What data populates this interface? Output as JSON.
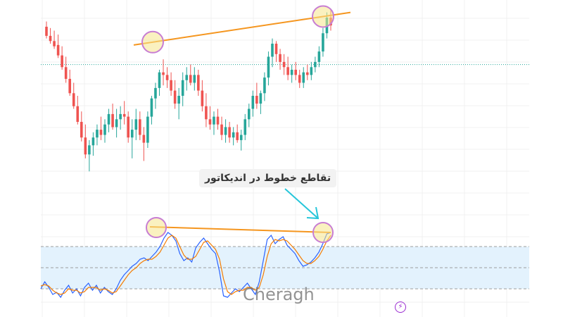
{
  "annotation": {
    "text": "تقاطع خطوط در اندیکاتور"
  },
  "watermark": {
    "text": "Cheragh"
  },
  "icons": {
    "flash": "lightning-bolt-icon"
  },
  "colors": {
    "up_candle": "#26a69a",
    "down_candle": "#ef5350",
    "trendline": "#f5961f",
    "highlight_circle_fill": "#f6e58d",
    "highlight_circle_stroke": "#c77dd3",
    "stoch_k": "#2962ff",
    "stoch_d": "#f57c00",
    "band_fill": "#e3f2fd",
    "arrow": "#26c6da",
    "dotted_level": "#26a69a"
  },
  "chart_data": [
    {
      "type": "candlestick",
      "title": "",
      "xlabel": "",
      "ylabel": "",
      "ylim": [
        0,
        100
      ],
      "grid": true,
      "horizontal_level": 64,
      "candles": [
        [
          93,
          97,
          84,
          86
        ],
        [
          86,
          92,
          80,
          82
        ],
        [
          82,
          90,
          76,
          78
        ],
        [
          79,
          87,
          69,
          71
        ],
        [
          71,
          78,
          60,
          62
        ],
        [
          62,
          70,
          50,
          53
        ],
        [
          53,
          60,
          40,
          42
        ],
        [
          42,
          50,
          30,
          32
        ],
        [
          32,
          40,
          18,
          20
        ],
        [
          20,
          28,
          5,
          8
        ],
        [
          8,
          18,
          -8,
          -5
        ],
        [
          -5,
          6,
          -18,
          2
        ],
        [
          2,
          12,
          -6,
          8
        ],
        [
          8,
          18,
          2,
          14
        ],
        [
          14,
          24,
          6,
          10
        ],
        [
          10,
          22,
          4,
          18
        ],
        [
          18,
          30,
          12,
          26
        ],
        [
          26,
          34,
          14,
          16
        ],
        [
          16,
          30,
          8,
          22
        ],
        [
          22,
          32,
          14,
          26
        ],
        [
          26,
          36,
          18,
          24
        ],
        [
          24,
          28,
          4,
          8
        ],
        [
          8,
          22,
          -8,
          14
        ],
        [
          14,
          30,
          6,
          22
        ],
        [
          22,
          28,
          6,
          10
        ],
        [
          10,
          16,
          -10,
          4
        ],
        [
          4,
          28,
          0,
          24
        ],
        [
          24,
          40,
          18,
          38
        ],
        [
          38,
          50,
          30,
          46
        ],
        [
          46,
          60,
          40,
          58
        ],
        [
          58,
          68,
          48,
          56
        ],
        [
          56,
          62,
          46,
          52
        ],
        [
          52,
          58,
          40,
          44
        ],
        [
          44,
          52,
          30,
          34
        ],
        [
          34,
          46,
          22,
          40
        ],
        [
          40,
          58,
          32,
          52
        ],
        [
          52,
          62,
          44,
          56
        ],
        [
          56,
          64,
          48,
          50
        ],
        [
          50,
          62,
          44,
          56
        ],
        [
          56,
          60,
          40,
          44
        ],
        [
          44,
          52,
          28,
          32
        ],
        [
          32,
          42,
          16,
          22
        ],
        [
          22,
          32,
          14,
          18
        ],
        [
          18,
          28,
          10,
          24
        ],
        [
          24,
          30,
          14,
          18
        ],
        [
          18,
          24,
          6,
          10
        ],
        [
          10,
          22,
          4,
          16
        ],
        [
          16,
          20,
          4,
          8
        ],
        [
          8,
          16,
          2,
          12
        ],
        [
          12,
          18,
          4,
          6
        ],
        [
          6,
          14,
          -2,
          10
        ],
        [
          10,
          26,
          6,
          22
        ],
        [
          22,
          34,
          16,
          30
        ],
        [
          30,
          44,
          24,
          40
        ],
        [
          40,
          50,
          30,
          34
        ],
        [
          34,
          44,
          26,
          42
        ],
        [
          42,
          58,
          36,
          54
        ],
        [
          54,
          74,
          48,
          70
        ],
        [
          70,
          84,
          62,
          80
        ],
        [
          80,
          82,
          66,
          72
        ],
        [
          72,
          76,
          60,
          66
        ],
        [
          66,
          72,
          56,
          62
        ],
        [
          62,
          70,
          52,
          56
        ],
        [
          56,
          64,
          50,
          60
        ],
        [
          60,
          66,
          52,
          56
        ],
        [
          56,
          60,
          46,
          50
        ],
        [
          50,
          62,
          46,
          58
        ],
        [
          58,
          64,
          52,
          56
        ],
        [
          56,
          66,
          52,
          62
        ],
        [
          62,
          70,
          58,
          66
        ],
        [
          66,
          78,
          62,
          74
        ],
        [
          74,
          92,
          70,
          88
        ],
        [
          88,
          104,
          84,
          100
        ],
        [
          100,
          106,
          90,
          94
        ]
      ],
      "trendline": {
        "from": [
          0.14,
          79
        ],
        "to": [
          1.0,
          104
        ]
      },
      "highlights": [
        "swing high",
        "swing high"
      ]
    },
    {
      "type": "line",
      "title": "",
      "ylim": [
        0,
        100
      ],
      "grid": true,
      "band": [
        20,
        80
      ],
      "levels": [
        80,
        50,
        20
      ],
      "series": [
        {
          "values": [
            20,
            30,
            22,
            12,
            15,
            8,
            18,
            25,
            14,
            20,
            10,
            22,
            28,
            18,
            25,
            14,
            22,
            16,
            12,
            20,
            32,
            40,
            46,
            52,
            56,
            62,
            64,
            60,
            66,
            72,
            80,
            92,
            100,
            96,
            88,
            70,
            60,
            64,
            58,
            78,
            86,
            92,
            84,
            76,
            70,
            44,
            10,
            8,
            14,
            20,
            16,
            22,
            28,
            20,
            12,
            30,
            60,
            90,
            96,
            84,
            90,
            94,
            82,
            76,
            70,
            60,
            52,
            54,
            58,
            64,
            72,
            84,
            98,
            100
          ]
        },
        {
          "values": [
            24,
            26,
            24,
            18,
            14,
            12,
            14,
            20,
            18,
            18,
            14,
            16,
            22,
            22,
            22,
            18,
            20,
            18,
            14,
            16,
            24,
            32,
            40,
            46,
            50,
            56,
            60,
            62,
            62,
            66,
            72,
            82,
            92,
            96,
            92,
            80,
            68,
            62,
            62,
            66,
            76,
            86,
            88,
            82,
            76,
            62,
            34,
            16,
            12,
            16,
            18,
            18,
            22,
            22,
            18,
            22,
            40,
            66,
            84,
            90,
            88,
            90,
            88,
            82,
            76,
            68,
            60,
            56,
            56,
            60,
            66,
            76,
            88,
            96
          ]
        }
      ],
      "trendline": {
        "from": [
          0.22,
          100
        ],
        "to": [
          1.0,
          96
        ]
      },
      "highlights": [
        "indicator high",
        "indicator high"
      ]
    }
  ]
}
